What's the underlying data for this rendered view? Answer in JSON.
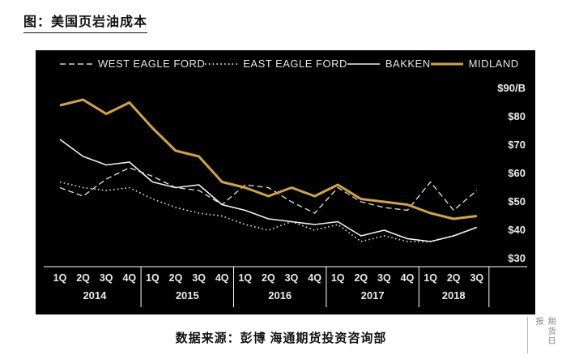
{
  "page": {
    "title": "图：美国页岩油成本",
    "source_caption": "数据来源：彭博  海通期货投资咨询部",
    "watermark_vertical": "期货日报"
  },
  "chart_data": {
    "type": "line",
    "title": "美国页岩油成本",
    "xlabel": "",
    "ylabel": "$/B",
    "ylim": [
      30,
      90
    ],
    "grid": false,
    "legend_position": "top",
    "background": "#000000",
    "axis_color": "#ffffff",
    "label_color": "#ececec",
    "x_quarters": [
      "1Q",
      "2Q",
      "3Q",
      "4Q",
      "1Q",
      "2Q",
      "3Q",
      "4Q",
      "1Q",
      "2Q",
      "3Q",
      "4Q",
      "1Q",
      "2Q",
      "3Q",
      "4Q",
      "1Q",
      "2Q",
      "3Q"
    ],
    "year_groups": [
      {
        "year": "2014",
        "count": 4
      },
      {
        "year": "2015",
        "count": 4
      },
      {
        "year": "2016",
        "count": 4
      },
      {
        "year": "2017",
        "count": 4
      },
      {
        "year": "2018",
        "count": 3
      }
    ],
    "y_ticks": [
      90,
      80,
      70,
      60,
      50,
      40,
      30
    ],
    "y_tick_labels": [
      "$90/B",
      "$80",
      "$70",
      "$60",
      "$50",
      "$40",
      "$30"
    ],
    "series": [
      {
        "name": "WEST EAGLE FORD",
        "line_style": "dashed",
        "color": "#d6d6d6",
        "values": [
          55,
          52,
          58,
          62,
          59,
          55,
          54,
          49,
          56,
          55,
          50,
          46,
          55,
          50,
          48,
          47,
          57,
          47,
          54
        ]
      },
      {
        "name": "EAST EAGLE FORD",
        "line_style": "dotted",
        "color": "#d6d6d6",
        "values": [
          57,
          55,
          54,
          55,
          51,
          48,
          46,
          45,
          42,
          40,
          43,
          40,
          42,
          36,
          38,
          36,
          36,
          38,
          41
        ]
      },
      {
        "name": "BAKKEN",
        "line_style": "solid",
        "color": "#f2f2f2",
        "values": [
          72,
          66,
          63,
          64,
          57,
          55,
          56,
          49,
          47,
          44,
          43,
          42,
          43,
          38,
          40,
          37,
          36,
          38,
          41
        ]
      },
      {
        "name": "MIDLAND",
        "line_style": "solid-thick",
        "color": "#d2a53e",
        "values": [
          84,
          86,
          81,
          85,
          76,
          68,
          66,
          57,
          55,
          52,
          55,
          52,
          56,
          51,
          50,
          49,
          46,
          44,
          45
        ]
      }
    ]
  }
}
